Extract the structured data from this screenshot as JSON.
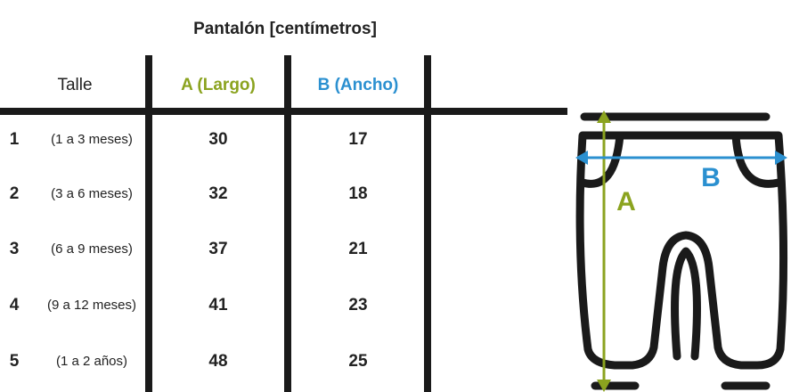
{
  "header": {
    "title": "Pantalón [centímetros]"
  },
  "table": {
    "columns": [
      "Talle",
      "A (Largo)",
      "B (Ancho)"
    ],
    "rows": [
      [
        "1",
        "(1 a 3 meses)",
        "30",
        "17"
      ],
      [
        "2",
        "(3 a 6 meses)",
        "32",
        "18"
      ],
      [
        "3",
        "(6 a 9 meses)",
        "37",
        "21"
      ],
      [
        "4",
        "(9 a 12 meses)",
        "41",
        "23"
      ],
      [
        "5",
        "(1 a 2 años)",
        "48",
        "25"
      ]
    ]
  },
  "illustration": {
    "label_a": "A",
    "label_b": "B"
  }
}
